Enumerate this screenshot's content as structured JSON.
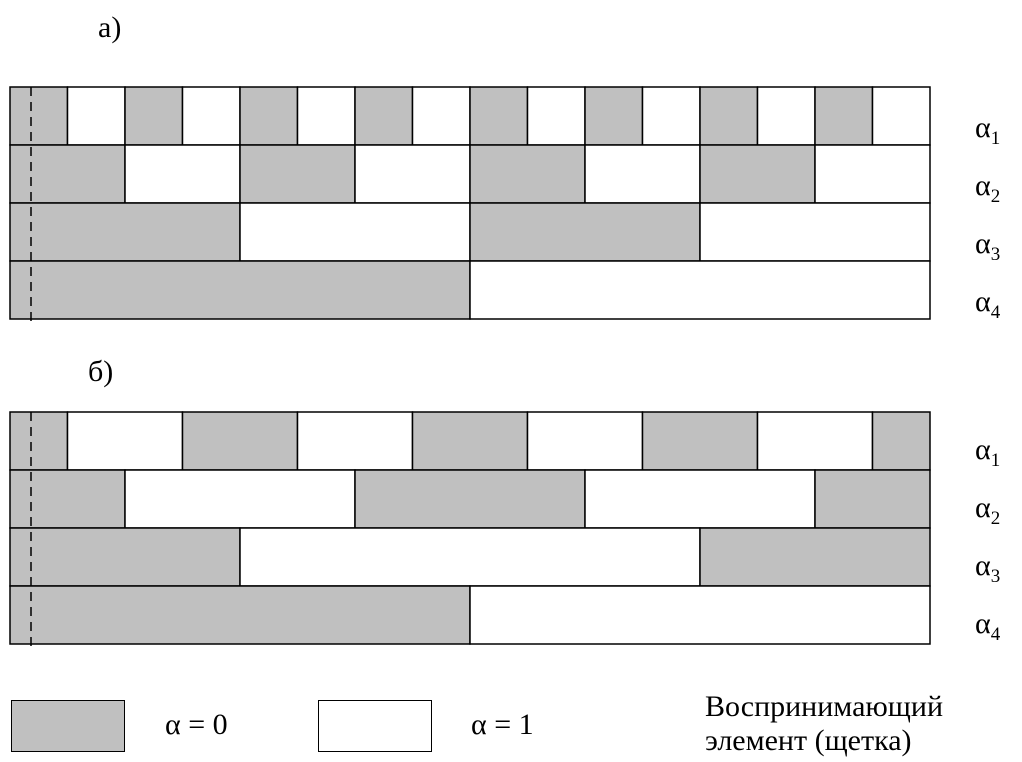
{
  "colors": {
    "zero": "#c0c0c0",
    "one": "#ffffff",
    "line": "#000000"
  },
  "panel_a": {
    "label": "а)",
    "rows": [
      {
        "label_symbol": "α",
        "label_index": "1",
        "pattern": [
          0,
          1,
          0,
          1,
          0,
          1,
          0,
          1,
          0,
          1,
          0,
          1,
          0,
          1,
          0,
          1
        ]
      },
      {
        "label_symbol": "α",
        "label_index": "2",
        "pattern": [
          0,
          0,
          1,
          1,
          0,
          0,
          1,
          1,
          0,
          0,
          1,
          1,
          0,
          0,
          1,
          1
        ]
      },
      {
        "label_symbol": "α",
        "label_index": "3",
        "pattern": [
          0,
          0,
          0,
          0,
          1,
          1,
          1,
          1,
          0,
          0,
          0,
          0,
          1,
          1,
          1,
          1
        ]
      },
      {
        "label_symbol": "α",
        "label_index": "4",
        "pattern": [
          0,
          0,
          0,
          0,
          0,
          0,
          0,
          0,
          1,
          1,
          1,
          1,
          1,
          1,
          1,
          1
        ]
      }
    ]
  },
  "panel_b": {
    "label": "б)",
    "rows": [
      {
        "label_symbol": "α",
        "label_index": "1",
        "pattern": [
          0,
          1,
          1,
          0,
          0,
          1,
          1,
          0,
          0,
          1,
          1,
          0,
          0,
          1,
          1,
          0
        ]
      },
      {
        "label_symbol": "α",
        "label_index": "2",
        "pattern": [
          0,
          0,
          1,
          1,
          1,
          1,
          0,
          0,
          0,
          0,
          1,
          1,
          1,
          1,
          0,
          0
        ]
      },
      {
        "label_symbol": "α",
        "label_index": "3",
        "pattern": [
          0,
          0,
          0,
          0,
          1,
          1,
          1,
          1,
          1,
          1,
          1,
          1,
          0,
          0,
          0,
          0
        ]
      },
      {
        "label_symbol": "α",
        "label_index": "4",
        "pattern": [
          0,
          0,
          0,
          0,
          0,
          0,
          0,
          0,
          1,
          1,
          1,
          1,
          1,
          1,
          1,
          1
        ]
      }
    ]
  },
  "legend": {
    "zero_label": "α = 0",
    "one_label": "α = 1",
    "brush_line1": "Воспринимающий",
    "brush_line2": "элемент (щетка)"
  }
}
